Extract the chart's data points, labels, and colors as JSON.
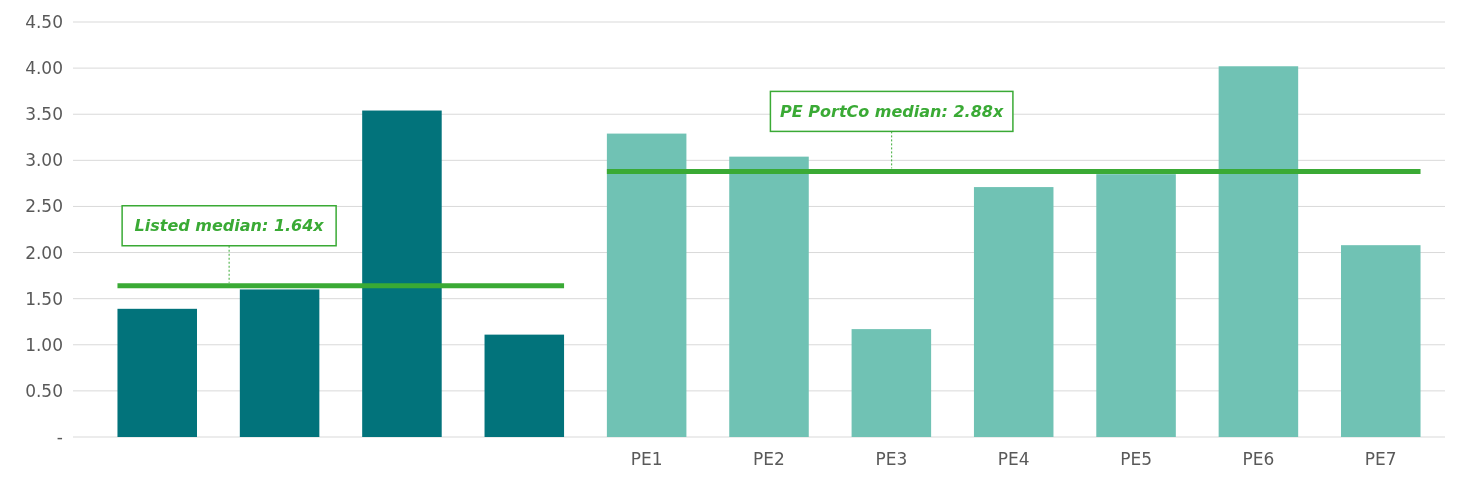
{
  "chart_data": {
    "type": "bar",
    "categories": [
      null,
      null,
      null,
      null,
      "PE1",
      "PE2",
      "PE3",
      "PE4",
      "PE5",
      "PE6",
      "PE7"
    ],
    "values": [
      1.39,
      1.6,
      3.54,
      1.11,
      3.29,
      3.04,
      1.17,
      2.71,
      2.85,
      4.02,
      2.08
    ],
    "colors": [
      "#02737b",
      "#02737b",
      "#02737b",
      "#02737b",
      "#70c2b4",
      "#70c2b4",
      "#70c2b4",
      "#70c2b4",
      "#70c2b4",
      "#70c2b4",
      "#70c2b4"
    ],
    "ylim": [
      0,
      4.5
    ],
    "yticks": [
      {
        "value": 0,
        "label": "-"
      },
      {
        "value": 0.5,
        "label": "0.50"
      },
      {
        "value": 1,
        "label": "1.00"
      },
      {
        "value": 1.5,
        "label": "1.50"
      },
      {
        "value": 2,
        "label": "2.00"
      },
      {
        "value": 2.5,
        "label": "2.50"
      },
      {
        "value": 3,
        "label": "3.00"
      },
      {
        "value": 3.5,
        "label": "3.50"
      },
      {
        "value": 4,
        "label": "4.00"
      },
      {
        "value": 4.5,
        "label": "4.50"
      }
    ],
    "grid": "y",
    "ref_lines": [
      {
        "axis": "y",
        "value": 1.64,
        "label": "Listed median: 1.64x",
        "color": "#3aaa35"
      },
      {
        "axis": "y",
        "value": 2.88,
        "label": "PE PortCo median: 2.88x",
        "color": "#3aaa35"
      }
    ]
  }
}
